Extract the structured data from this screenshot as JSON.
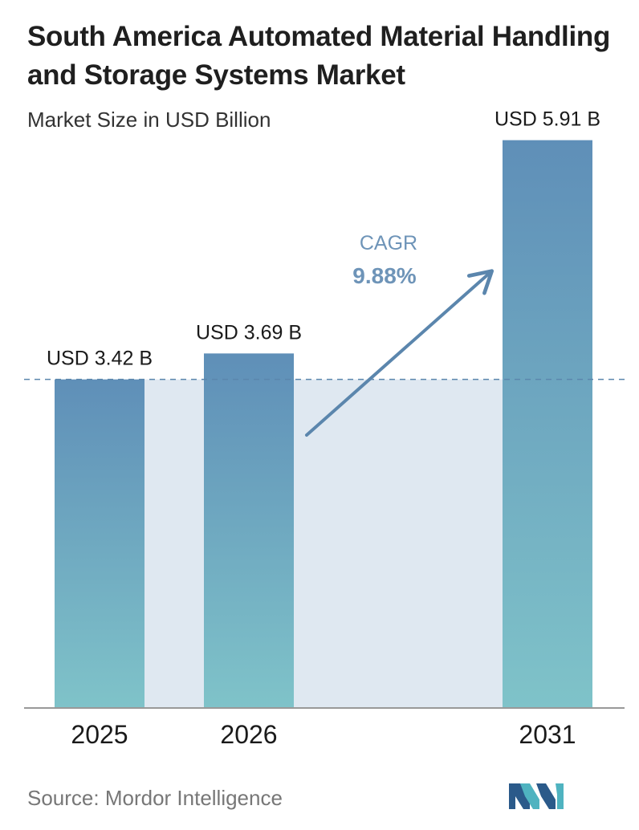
{
  "header": {
    "title": "South America Automated Material Handling and Storage Systems Market",
    "subtitle": "Market Size in USD Billion"
  },
  "cagr": {
    "label": "CAGR",
    "value": "9.88%"
  },
  "footer": {
    "source": "Source: Mordor Intelligence",
    "logo_icon": "mordor-intelligence-logo-icon"
  },
  "colors": {
    "bar_top": "#5f8fb8",
    "bar_bottom": "#7fc3c9",
    "shade": "#dfe8f1",
    "arrow": "#5b86ad",
    "dashed_line": "#5b86ad",
    "axis": "#999999",
    "cagr_text": "#6e94b8"
  },
  "chart_data": {
    "type": "bar",
    "title": "South America Automated Material Handling and Storage Systems Market",
    "subtitle": "Market Size in USD Billion",
    "categories": [
      "2025",
      "2026",
      "2031"
    ],
    "values": [
      3.42,
      3.69,
      5.91
    ],
    "value_labels": [
      "USD 3.42 B",
      "USD 3.69 B",
      "USD 5.91 B"
    ],
    "ylim": [
      0,
      6.5
    ],
    "grid": false,
    "reference_line": 3.42
  }
}
